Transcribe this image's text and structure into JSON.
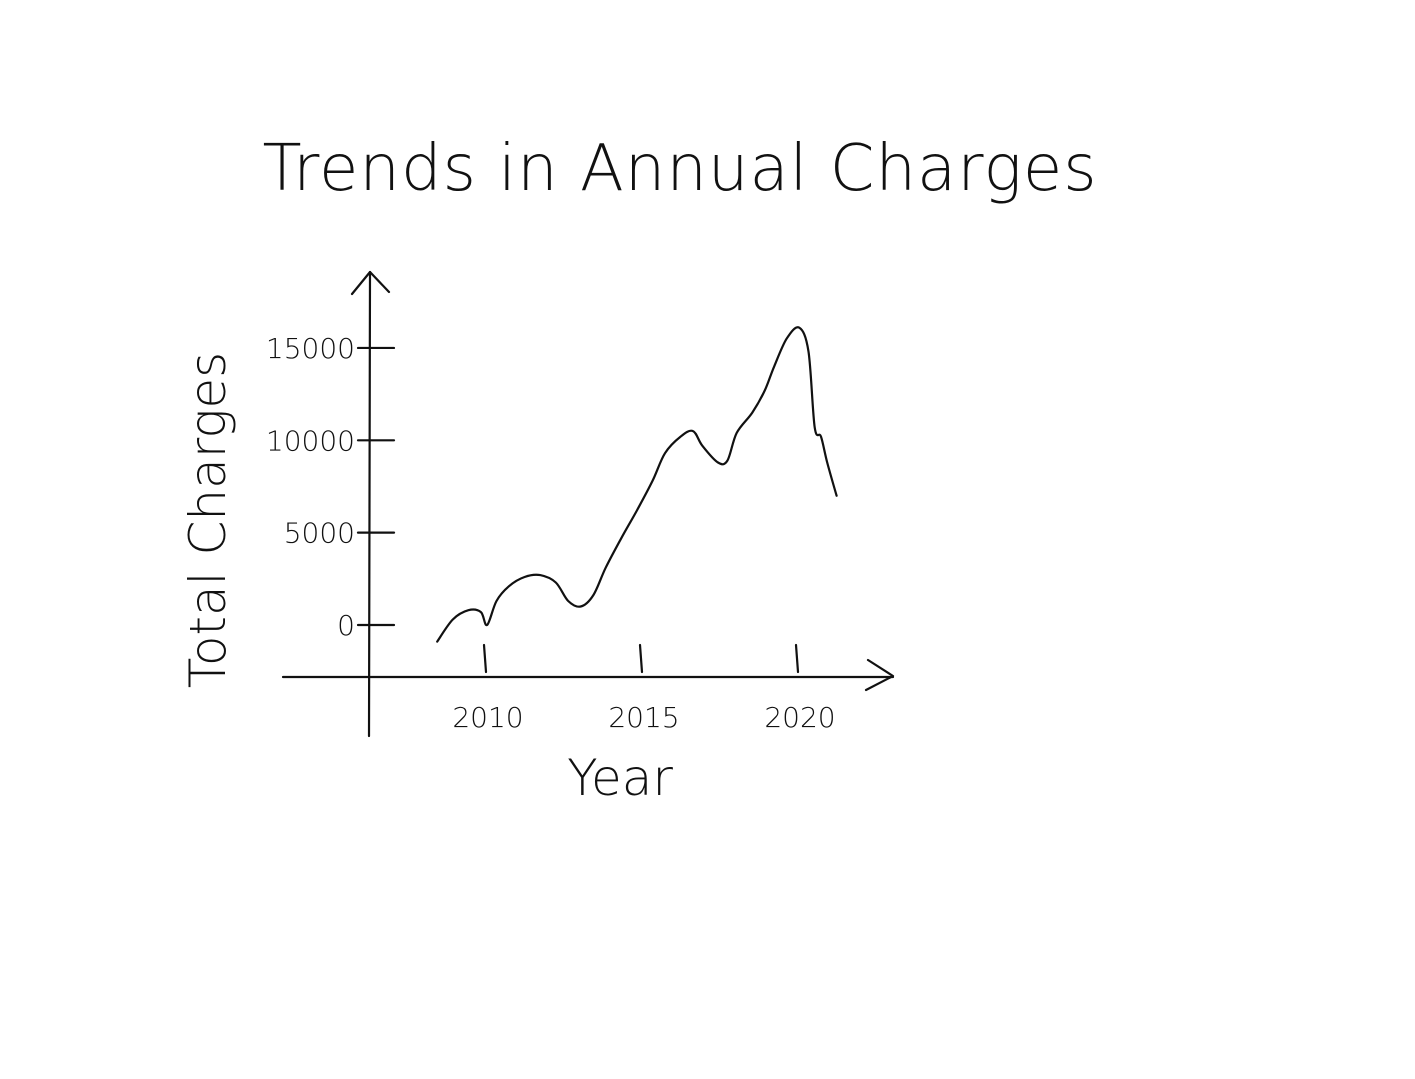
{
  "chart_data": {
    "type": "line",
    "title": "Trends in Annual Charges",
    "xlabel": "Year",
    "ylabel": "Total Charges",
    "x_ticks": [
      {
        "value": 2010,
        "label": "2010"
      },
      {
        "value": 2015,
        "label": "2015"
      },
      {
        "value": 2020,
        "label": "2020"
      }
    ],
    "y_ticks": [
      {
        "value": 0,
        "label": "0"
      },
      {
        "value": 5000,
        "label": "5000"
      },
      {
        "value": 10000,
        "label": "10000"
      },
      {
        "value": 15000,
        "label": "15000"
      }
    ],
    "xlim": [
      2006.5,
      2023.5
    ],
    "ylim": [
      -3000,
      18000
    ],
    "grid": false,
    "series": [
      {
        "x": [
          2008.5,
          2009.0,
          2009.5,
          2009.9,
          2010.1,
          2010.4,
          2010.8,
          2011.3,
          2011.8,
          2012.3,
          2012.7,
          2013.1,
          2013.5,
          2013.9,
          2014.4,
          2014.9,
          2015.4,
          2015.8,
          2016.3,
          2016.7,
          2017.0,
          2017.5,
          2017.8,
          2018.1,
          2018.6,
          2019.0,
          2019.3,
          2019.7,
          2020.1,
          2020.4,
          2020.6,
          2020.8,
          2021.0,
          2021.3
        ],
        "y": [
          -900,
          300,
          800,
          700,
          0,
          1300,
          2100,
          2600,
          2700,
          2300,
          1300,
          1000,
          1600,
          3100,
          4700,
          6200,
          7800,
          9300,
          10200,
          10500,
          9700,
          8800,
          8900,
          10400,
          11500,
          12700,
          14000,
          15500,
          16100,
          14800,
          10700,
          10200,
          8800,
          7000
        ]
      }
    ]
  }
}
